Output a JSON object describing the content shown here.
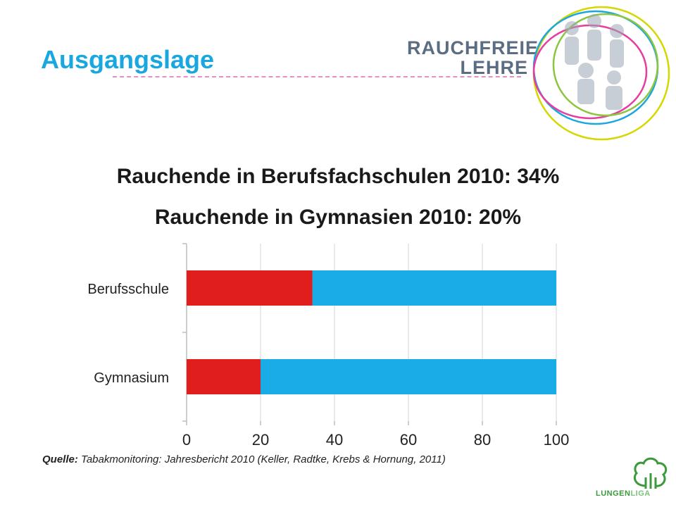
{
  "slide": {
    "title": "Ausgangslage",
    "heading_line1": "Rauchende in Berufsfachschulen 2010: 34%",
    "heading_line2": "Rauchende in Gymnasien 2010: 20%",
    "source_label": "Quelle:",
    "source_text": "Tabakmonitoring: Jahresbericht 2010 (Keller, Radtke, Krebs & Hornung, 2011)"
  },
  "logo": {
    "line1": "RAUCHFREIE",
    "line2": "LEHRE"
  },
  "footer_logo": {
    "part1": "LUNGEN",
    "part2": "LIGA"
  },
  "colors": {
    "title": "#1aa7e0",
    "smokers": "#e01e1e",
    "rest": "#1aace6"
  },
  "chart_data": {
    "type": "bar",
    "orientation": "horizontal",
    "stacked": true,
    "categories": [
      "Berufsschule",
      "Gymnasium"
    ],
    "series": [
      {
        "values": [
          34,
          20
        ],
        "color": "#e01e1e"
      },
      {
        "values": [
          66,
          80
        ],
        "color": "#1aace6"
      }
    ],
    "xlim": [
      0,
      100
    ],
    "xticks": [
      0,
      20,
      40,
      60,
      80,
      100
    ],
    "grid": true,
    "legend": "none"
  }
}
